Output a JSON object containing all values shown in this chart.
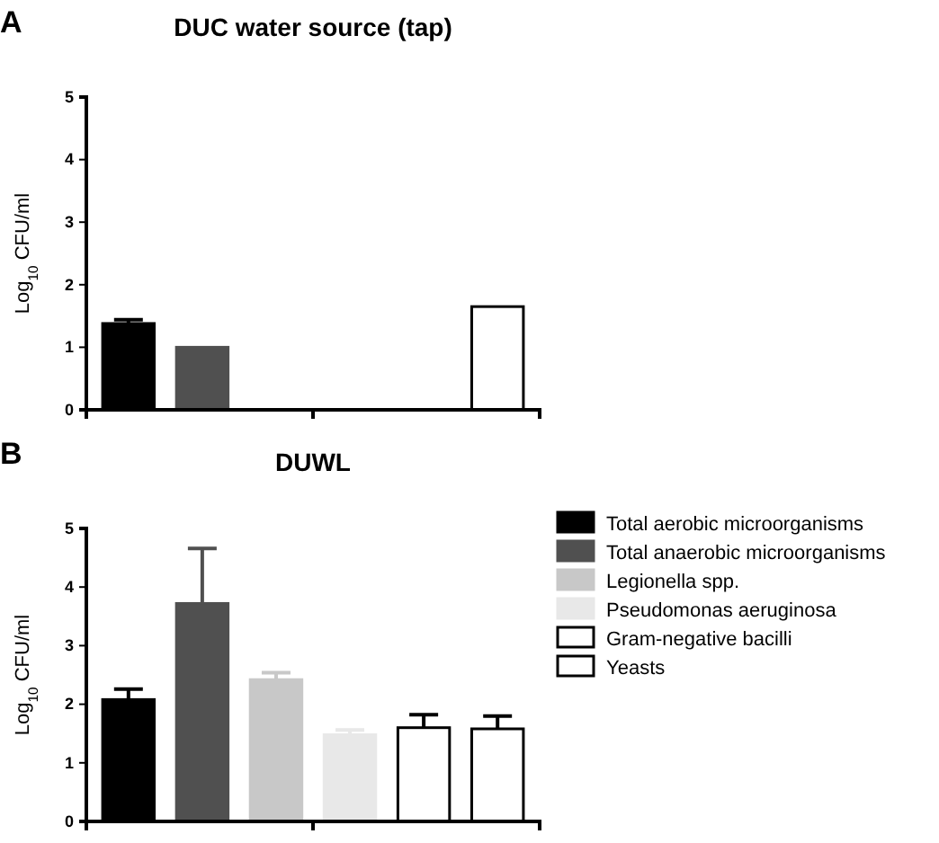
{
  "chart_data": [
    {
      "type": "bar",
      "title": "DUC water source (tap)",
      "ylabel": "Log$_{10}$ CFU/ml",
      "annotations": [
        "A"
      ],
      "categories": [
        null
      ],
      "ylim": [
        0,
        5
      ],
      "yticks": [
        0,
        1,
        2,
        3,
        4,
        5
      ],
      "legend": false,
      "series": [
        {
          "color": "#000000",
          "values": [
            1.38
          ],
          "errors": [
            [
              1.38,
              1.44
            ]
          ]
        },
        {
          "color": "#505050",
          "values": [
            1.0
          ]
        },
        {
          "color": "#c8c8c8",
          "values": [
            null
          ]
        },
        {
          "color": "#e8e8e8",
          "values": [
            null
          ]
        },
        {
          "color": "#ffffff",
          "values": [
            null
          ]
        },
        {
          "color": "#ffffff",
          "values": [
            1.65
          ]
        }
      ]
    },
    {
      "type": "bar",
      "title": "DUWL",
      "ylabel": "Log$_{10}$ CFU/ml",
      "annotations": [
        "B"
      ],
      "categories": [
        null
      ],
      "ylim": [
        0,
        5
      ],
      "yticks": [
        0,
        1,
        2,
        3,
        4,
        5
      ],
      "legend": "right",
      "series": [
        {
          "name": "Total aerobic microorganisms",
          "color": "#000000",
          "values": [
            2.08
          ],
          "errors": [
            [
              2.08,
              2.26
            ]
          ]
        },
        {
          "name": "Total anaerobic microorganisms",
          "color": "#505050",
          "values": [
            3.72
          ],
          "errors": [
            [
              3.72,
              4.66
            ]
          ]
        },
        {
          "name": "Legionella spp.",
          "color": "#c8c8c8",
          "values": [
            2.42
          ],
          "errors": [
            [
              2.42,
              2.54
            ]
          ]
        },
        {
          "name": "Pseudomonas aeruginosa",
          "color": "#e8e8e8",
          "values": [
            1.48
          ],
          "errors": [
            [
              1.48,
              1.56
            ]
          ]
        },
        {
          "name": "Gram-negative bacilli",
          "color": "#ffffff",
          "values": [
            1.6
          ],
          "errors": [
            [
              1.6,
              1.82
            ]
          ]
        },
        {
          "name": "Yeasts",
          "color": "#ffffff",
          "values": [
            1.58
          ],
          "errors": [
            [
              1.58,
              1.8
            ]
          ]
        }
      ]
    }
  ]
}
